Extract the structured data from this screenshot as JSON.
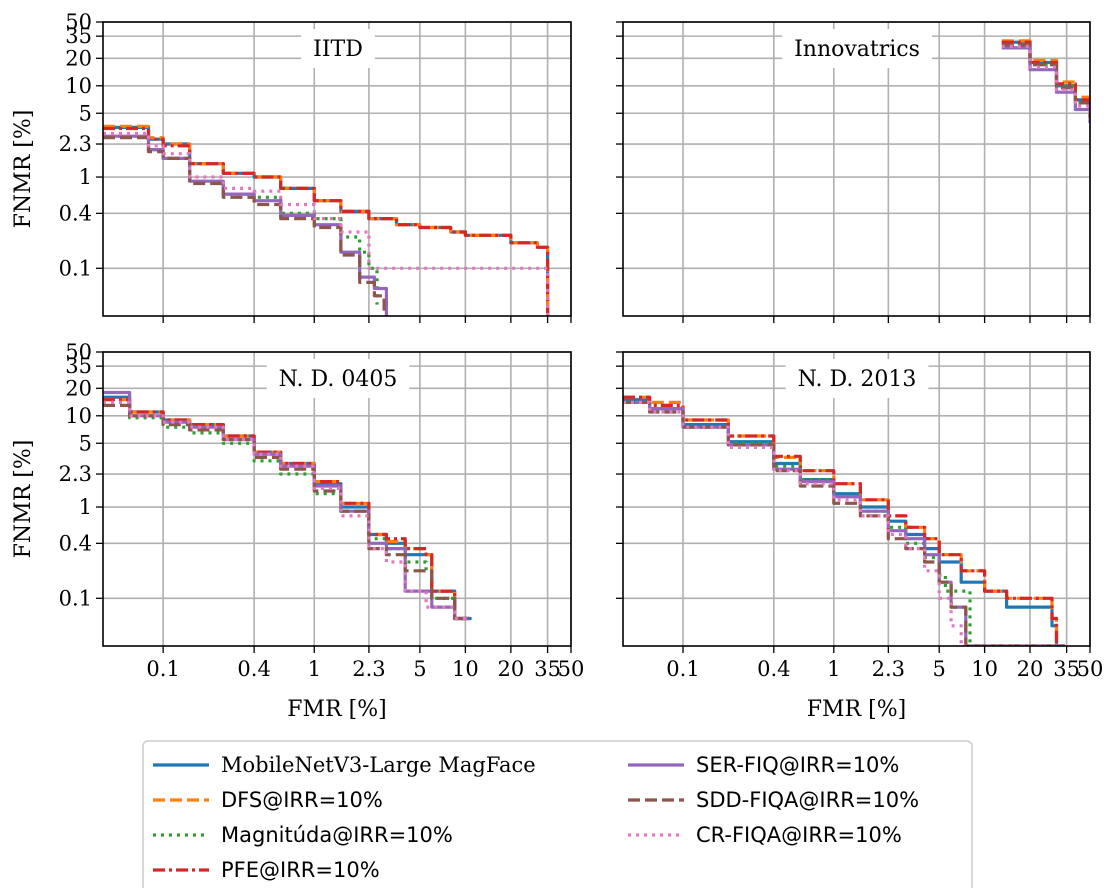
{
  "chart_data": [
    {
      "type": "line",
      "title": "IITD",
      "xlabel": "",
      "ylabel": "FNMR [%]",
      "xscale": "log",
      "yscale": "log",
      "xlim": [
        0.04,
        50
      ],
      "ylim": [
        0.03,
        50
      ],
      "xticks": [
        "0.1",
        "0.4",
        "1",
        "2.3",
        "5",
        "10",
        "20",
        "35",
        "50"
      ],
      "yticks": [
        "50",
        "35",
        "20",
        "10",
        "5",
        "2.3",
        "1",
        "0.4",
        "0.1"
      ],
      "grid": true,
      "series": [
        {
          "name": "MobileNetV3-Large MagFace",
          "x": [
            0.04,
            0.08,
            0.1,
            0.15,
            0.25,
            0.4,
            0.6,
            1.0,
            1.5,
            2.3,
            3.5,
            5,
            8,
            10,
            20,
            30,
            35
          ],
          "y": [
            3.5,
            2.6,
            2.3,
            1.4,
            1.1,
            1.0,
            0.75,
            0.55,
            0.42,
            0.35,
            0.3,
            0.28,
            0.25,
            0.23,
            0.19,
            0.17,
            0.03
          ]
        },
        {
          "name": "DFS@IRR=10%",
          "x": [
            0.04,
            0.08,
            0.1,
            0.15,
            0.25,
            0.4,
            0.6,
            1.0,
            1.5,
            2.3,
            3.5,
            5,
            8,
            10,
            20,
            30,
            35
          ],
          "y": [
            3.6,
            2.7,
            2.3,
            1.4,
            1.1,
            1.0,
            0.75,
            0.55,
            0.42,
            0.35,
            0.3,
            0.28,
            0.25,
            0.23,
            0.19,
            0.17,
            0.03
          ]
        },
        {
          "name": "Magnitúda@IRR=10%",
          "x": [
            0.04,
            0.08,
            0.1,
            0.15,
            0.25,
            0.4,
            0.6,
            1.0,
            1.5,
            2.0,
            2.3,
            2.6
          ],
          "y": [
            2.8,
            2.0,
            1.6,
            0.9,
            0.65,
            0.6,
            0.4,
            0.35,
            0.22,
            0.15,
            0.1,
            0.04
          ]
        },
        {
          "name": "PFE@IRR=10%",
          "x": [
            0.04,
            0.08,
            0.1,
            0.15,
            0.25,
            0.4,
            0.6,
            1.0,
            1.5,
            2.3,
            3.5,
            5,
            8,
            10,
            20,
            30,
            35
          ],
          "y": [
            3.4,
            2.6,
            2.2,
            1.4,
            1.1,
            1.0,
            0.75,
            0.55,
            0.42,
            0.35,
            0.3,
            0.28,
            0.25,
            0.23,
            0.19,
            0.17,
            0.03
          ]
        },
        {
          "name": "SER-FIQ@IRR=10%",
          "x": [
            0.04,
            0.08,
            0.1,
            0.15,
            0.25,
            0.4,
            0.6,
            1.0,
            1.5,
            2.0,
            2.5,
            3.0
          ],
          "y": [
            2.8,
            2.0,
            1.6,
            0.9,
            0.65,
            0.55,
            0.38,
            0.3,
            0.15,
            0.08,
            0.06,
            0.03
          ]
        },
        {
          "name": "SDD-FIQA@IRR=10%",
          "x": [
            0.04,
            0.08,
            0.1,
            0.15,
            0.25,
            0.4,
            0.6,
            1.0,
            1.5,
            2.0,
            2.5,
            2.9
          ],
          "y": [
            2.7,
            1.9,
            1.6,
            0.85,
            0.6,
            0.5,
            0.35,
            0.28,
            0.14,
            0.07,
            0.05,
            0.03
          ]
        },
        {
          "name": "CR-FIQA@IRR=10%",
          "x": [
            0.04,
            0.08,
            0.1,
            0.15,
            0.25,
            0.4,
            0.6,
            1.0,
            1.5,
            2.3,
            5,
            10,
            20,
            34,
            35
          ],
          "y": [
            3.0,
            2.2,
            1.8,
            1.0,
            0.75,
            0.7,
            0.5,
            0.35,
            0.25,
            0.1,
            0.1,
            0.1,
            0.1,
            0.1,
            0.03
          ]
        }
      ]
    },
    {
      "type": "line",
      "title": "Innovatrics",
      "xlabel": "",
      "ylabel": "",
      "xscale": "log",
      "yscale": "log",
      "xlim": [
        0.04,
        50
      ],
      "ylim": [
        0.03,
        50
      ],
      "xticks": [
        "0.1",
        "0.4",
        "1",
        "2.3",
        "5",
        "10",
        "20",
        "35",
        "50"
      ],
      "yticks": [
        "50",
        "35",
        "20",
        "10",
        "5",
        "2.3",
        "1",
        "0.4",
        "0.1"
      ],
      "grid": true,
      "series": [
        {
          "name": "MobileNetV3-Large MagFace",
          "x": [
            13,
            20,
            30,
            40,
            50
          ],
          "y": [
            30,
            18,
            10,
            7,
            5
          ]
        },
        {
          "name": "DFS@IRR=10%",
          "x": [
            13,
            20,
            30,
            40,
            50
          ],
          "y": [
            31,
            19,
            11,
            7.5,
            5.5
          ]
        },
        {
          "name": "Magnitúda@IRR=10%",
          "x": [
            13,
            20,
            30,
            40,
            50
          ],
          "y": [
            29,
            17,
            10,
            6.5,
            4.8
          ]
        },
        {
          "name": "PFE@IRR=10%",
          "x": [
            13,
            20,
            30,
            40,
            50
          ],
          "y": [
            30,
            18,
            10.5,
            7,
            5.2
          ]
        },
        {
          "name": "SER-FIQ@IRR=10%",
          "x": [
            13,
            20,
            30,
            40,
            50
          ],
          "y": [
            26,
            15,
            8.5,
            5.5,
            3.9
          ]
        },
        {
          "name": "SDD-FIQA@IRR=10%",
          "x": [
            13,
            20,
            30,
            40,
            50
          ],
          "y": [
            28,
            17,
            9.5,
            6.5,
            4.5
          ]
        },
        {
          "name": "CR-FIQA@IRR=10%",
          "x": [
            13,
            20,
            30,
            40,
            50
          ],
          "y": [
            27,
            16,
            9,
            6,
            4.2
          ]
        }
      ]
    },
    {
      "type": "line",
      "title": "N. D. 0405",
      "xlabel": "FMR [%]",
      "ylabel": "FNMR [%]",
      "xscale": "log",
      "yscale": "log",
      "xlim": [
        0.04,
        50
      ],
      "ylim": [
        0.03,
        50
      ],
      "xticks": [
        "0.1",
        "0.4",
        "1",
        "2.3",
        "5",
        "10",
        "20",
        "35",
        "50"
      ],
      "yticks": [
        "50",
        "35",
        "20",
        "10",
        "5",
        "2.3",
        "1",
        "0.4",
        "0.1"
      ],
      "grid": true,
      "series": [
        {
          "name": "MobileNetV3-Large MagFace",
          "x": [
            0.04,
            0.06,
            0.1,
            0.15,
            0.25,
            0.4,
            0.6,
            1.0,
            1.5,
            2.3,
            3.0,
            4.0,
            5.5,
            6.0,
            8.0,
            8.5,
            11
          ],
          "y": [
            16,
            11,
            9,
            8,
            6,
            4,
            3,
            1.8,
            1.0,
            0.5,
            0.4,
            0.3,
            0.3,
            0.12,
            0.12,
            0.06,
            0.06
          ]
        },
        {
          "name": "DFS@IRR=10%",
          "x": [
            0.04,
            0.06,
            0.1,
            0.15,
            0.25,
            0.4,
            0.6,
            1.0,
            1.5,
            2.3,
            3.0,
            4.0,
            5.5,
            6.0,
            8.0,
            8.5,
            10.5
          ],
          "y": [
            15,
            11,
            9,
            8,
            6,
            4,
            3,
            1.9,
            1.1,
            0.5,
            0.42,
            0.35,
            0.3,
            0.12,
            0.12,
            0.06,
            0.06
          ]
        },
        {
          "name": "Magnitúda@IRR=10%",
          "x": [
            0.04,
            0.06,
            0.1,
            0.15,
            0.25,
            0.4,
            0.6,
            1.0,
            1.5,
            2.3,
            3.0,
            4.0,
            5.5,
            6.0,
            8.0,
            8.5,
            10.5
          ],
          "y": [
            14,
            9.5,
            7.5,
            6.5,
            5,
            3.2,
            2.3,
            1.4,
            0.9,
            0.45,
            0.35,
            0.25,
            0.2,
            0.1,
            0.1,
            0.06,
            0.06
          ]
        },
        {
          "name": "PFE@IRR=10%",
          "x": [
            0.04,
            0.06,
            0.1,
            0.15,
            0.25,
            0.4,
            0.6,
            1.0,
            1.5,
            2.3,
            3.0,
            4.0,
            5.5,
            6.0,
            8.0,
            8.5,
            10.5
          ],
          "y": [
            15,
            11,
            9,
            8,
            6,
            4,
            3,
            1.9,
            1.1,
            0.5,
            0.45,
            0.35,
            0.3,
            0.12,
            0.12,
            0.06,
            0.06
          ]
        },
        {
          "name": "SER-FIQ@IRR=10%",
          "x": [
            0.04,
            0.06,
            0.1,
            0.15,
            0.25,
            0.4,
            0.6,
            1.0,
            1.5,
            2.3,
            3.0,
            4.0,
            5.5,
            6.0,
            8.0,
            8.5,
            10.5
          ],
          "y": [
            18,
            10,
            8.5,
            7.5,
            5.5,
            3.8,
            2.8,
            1.7,
            0.9,
            0.4,
            0.35,
            0.12,
            0.12,
            0.08,
            0.08,
            0.06,
            0.06
          ]
        },
        {
          "name": "SDD-FIQA@IRR=10%",
          "x": [
            0.04,
            0.06,
            0.1,
            0.15,
            0.25,
            0.4,
            0.6,
            1.0,
            1.5,
            2.3,
            3.0,
            4.0,
            5.5,
            6.0,
            8.0,
            8.5,
            10.5
          ],
          "y": [
            13,
            10,
            8,
            7,
            5.5,
            3.5,
            2.6,
            1.5,
            0.9,
            0.35,
            0.3,
            0.2,
            0.2,
            0.1,
            0.1,
            0.06,
            0.06
          ]
        },
        {
          "name": "CR-FIQA@IRR=10%",
          "x": [
            0.04,
            0.06,
            0.1,
            0.15,
            0.25,
            0.4,
            0.6,
            1.0,
            1.5,
            2.3,
            3.0,
            4.0,
            5.5,
            6.0,
            8.0,
            8.5,
            10.5
          ],
          "y": [
            14,
            10,
            8.5,
            7.5,
            5.5,
            3.8,
            2.8,
            1.6,
            0.8,
            0.35,
            0.25,
            0.12,
            0.08,
            0.08,
            0.08,
            0.06,
            0.06
          ]
        }
      ]
    },
    {
      "type": "line",
      "title": "N. D. 2013",
      "xlabel": "FMR [%]",
      "ylabel": "",
      "xscale": "log",
      "yscale": "log",
      "xlim": [
        0.04,
        50
      ],
      "ylim": [
        0.03,
        50
      ],
      "xticks": [
        "0.1",
        "0.4",
        "1",
        "2.3",
        "5",
        "10",
        "20",
        "35",
        "50"
      ],
      "yticks": [
        "50",
        "35",
        "20",
        "10",
        "5",
        "2.3",
        "1",
        "0.4",
        "0.1"
      ],
      "grid": true,
      "series": [
        {
          "name": "MobileNetV3-Large MagFace",
          "x": [
            0.04,
            0.06,
            0.1,
            0.2,
            0.4,
            0.6,
            1.0,
            1.5,
            2.3,
            3.0,
            4.0,
            5.0,
            7.0,
            10,
            14,
            28,
            30,
            34
          ],
          "y": [
            15,
            12,
            8,
            5.2,
            3.0,
            2.0,
            1.4,
            1.0,
            0.7,
            0.5,
            0.35,
            0.25,
            0.15,
            0.12,
            0.08,
            0.05,
            0.03,
            0.03
          ]
        },
        {
          "name": "DFS@IRR=10%",
          "x": [
            0.04,
            0.06,
            0.1,
            0.2,
            0.4,
            0.6,
            1.0,
            1.5,
            2.3,
            3.0,
            4.0,
            5.0,
            7.0,
            10,
            14,
            28,
            30,
            34
          ],
          "y": [
            16,
            14,
            9,
            6,
            3.5,
            2.5,
            1.8,
            1.2,
            0.8,
            0.6,
            0.45,
            0.3,
            0.2,
            0.12,
            0.1,
            0.06,
            0.03,
            0.03
          ]
        },
        {
          "name": "Magnitúda@IRR=10%",
          "x": [
            0.04,
            0.06,
            0.1,
            0.2,
            0.4,
            0.6,
            1.0,
            1.5,
            2.3,
            3.0,
            4.0,
            5.0,
            5.5,
            7.0,
            8.0,
            34
          ],
          "y": [
            14,
            12,
            7.5,
            5,
            2.8,
            2.0,
            1.3,
            0.9,
            0.6,
            0.4,
            0.28,
            0.18,
            0.12,
            0.12,
            0.03,
            0.03
          ]
        },
        {
          "name": "PFE@IRR=10%",
          "x": [
            0.04,
            0.06,
            0.1,
            0.2,
            0.4,
            0.6,
            1.0,
            1.5,
            2.3,
            3.0,
            4.0,
            5.0,
            7.0,
            10,
            14,
            28,
            30,
            34
          ],
          "y": [
            16,
            13,
            9,
            6,
            3.6,
            2.5,
            1.8,
            1.2,
            0.8,
            0.6,
            0.45,
            0.3,
            0.2,
            0.12,
            0.1,
            0.06,
            0.03,
            0.03
          ]
        },
        {
          "name": "SER-FIQ@IRR=10%",
          "x": [
            0.04,
            0.06,
            0.1,
            0.2,
            0.4,
            0.6,
            1.0,
            1.5,
            2.3,
            3.0,
            4.0,
            5.0,
            6.0,
            7.5,
            34
          ],
          "y": [
            14,
            12,
            7.5,
            4.8,
            2.6,
            1.9,
            1.3,
            0.9,
            0.55,
            0.45,
            0.3,
            0.15,
            0.08,
            0.03,
            0.03
          ]
        },
        {
          "name": "SDD-FIQA@IRR=10%",
          "x": [
            0.04,
            0.06,
            0.1,
            0.2,
            0.4,
            0.6,
            1.0,
            1.5,
            2.3,
            3.0,
            4.0,
            5.0,
            6.0,
            7.5,
            34
          ],
          "y": [
            14,
            11,
            7.5,
            4.8,
            2.5,
            1.7,
            1.1,
            0.8,
            0.45,
            0.35,
            0.25,
            0.15,
            0.08,
            0.03,
            0.03
          ]
        },
        {
          "name": "CR-FIQA@IRR=10%",
          "x": [
            0.04,
            0.06,
            0.1,
            0.2,
            0.4,
            0.6,
            1.0,
            1.5,
            2.3,
            3.0,
            4.0,
            5.0,
            6.0,
            7.0,
            34
          ],
          "y": [
            14,
            11,
            7.5,
            4.5,
            2.5,
            1.8,
            1.2,
            0.8,
            0.5,
            0.35,
            0.2,
            0.1,
            0.05,
            0.03,
            0.03
          ]
        }
      ]
    }
  ],
  "legend": {
    "placement": "bottom-center",
    "entries": [
      {
        "label": "MobileNetV3-Large MagFace",
        "color": "#1f77b4",
        "style": "solid"
      },
      {
        "label": "DFS@IRR=10%",
        "color": "#ff7f0e",
        "style": "dashed"
      },
      {
        "label": "Magnitúda@IRR=10%",
        "color": "#2ca02c",
        "style": "dotted"
      },
      {
        "label": "PFE@IRR=10%",
        "color": "#d62728",
        "style": "dashdot"
      },
      {
        "label": "SER-FIQ@IRR=10%",
        "color": "#9467bd",
        "style": "solid"
      },
      {
        "label": "SDD-FIQA@IRR=10%",
        "color": "#8c564b",
        "style": "dashed"
      },
      {
        "label": "CR-FIQA@IRR=10%",
        "color": "#e377c2",
        "style": "dotted"
      }
    ]
  }
}
